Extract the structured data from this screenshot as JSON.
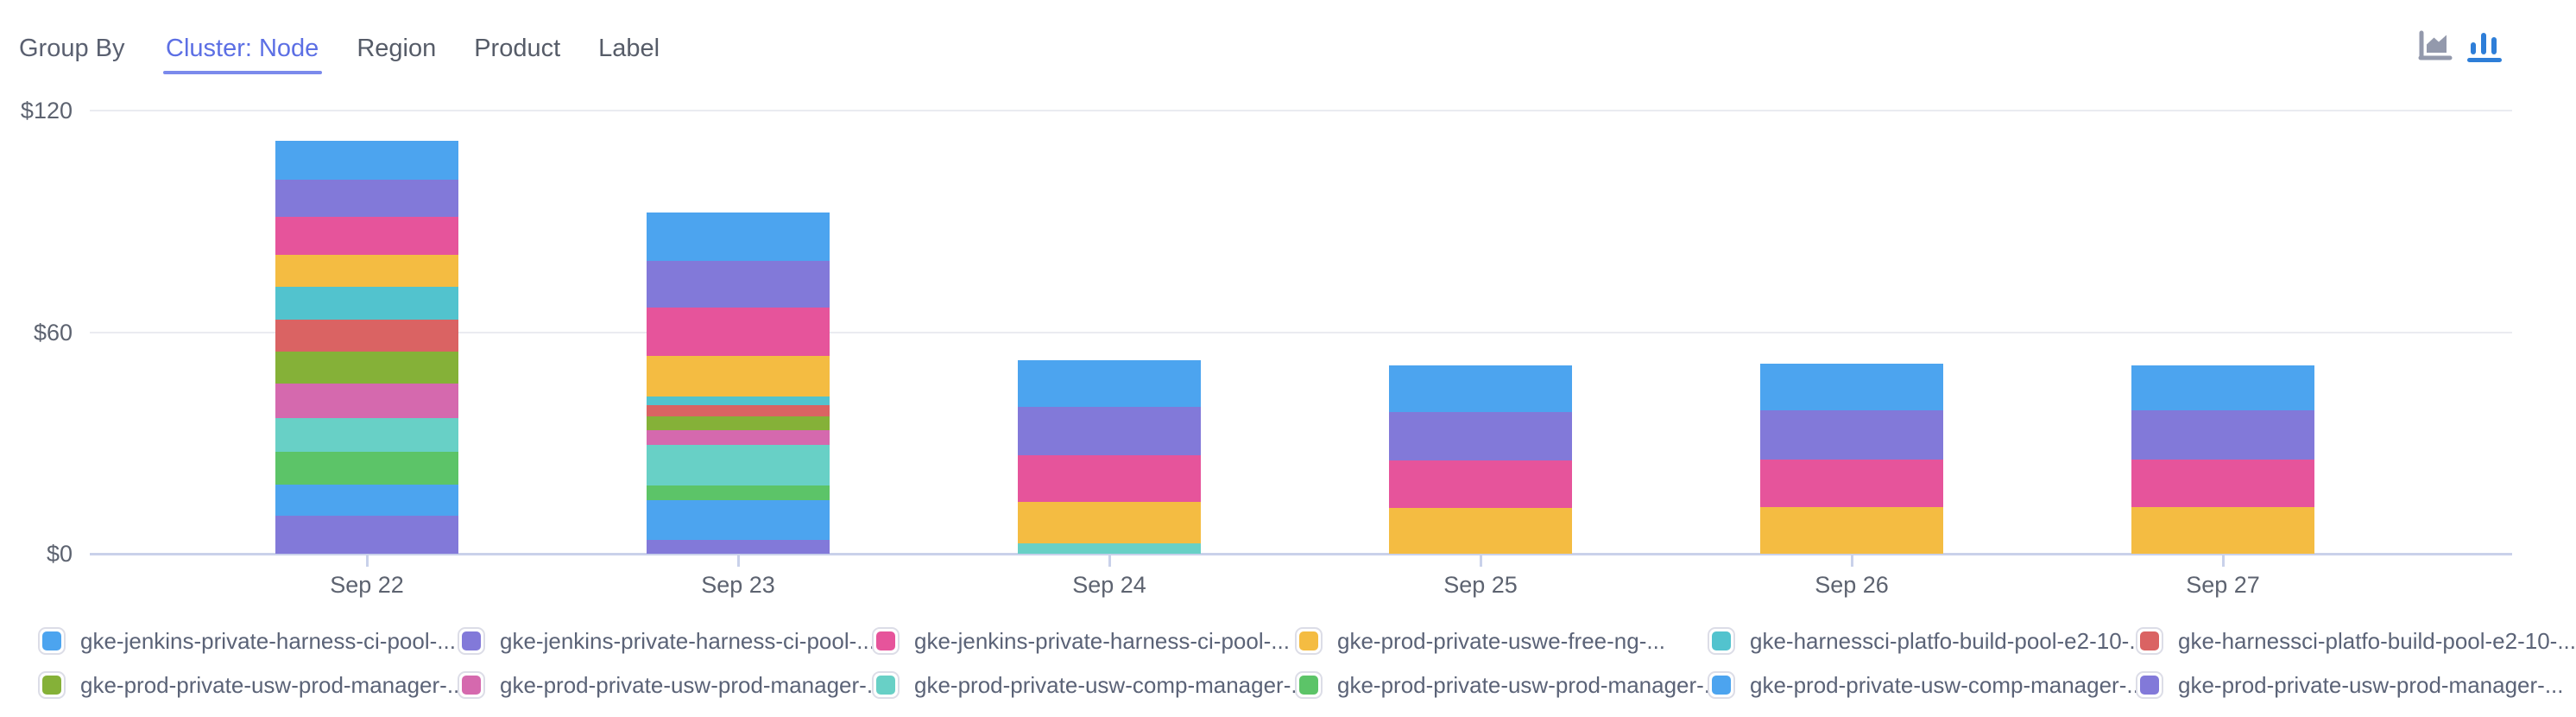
{
  "header": {
    "group_by_label": "Group By",
    "tabs": [
      {
        "label": "Cluster: Node",
        "active": true
      },
      {
        "label": "Region",
        "active": false
      },
      {
        "label": "Product",
        "active": false
      },
      {
        "label": "Label",
        "active": false
      }
    ],
    "chart_type_toggle": [
      {
        "name": "area-chart",
        "active": false
      },
      {
        "name": "bar-chart",
        "active": true
      }
    ]
  },
  "colors": {
    "active_tab": "#5c6fe4",
    "tab_underline": "#7b8aec",
    "inactive_tab_text": "#565c68",
    "icon_active": "#2e7ed8",
    "icon_inactive": "#9399ac",
    "gridline": "#eaebf1",
    "x_axis_line": "#c9d1ea",
    "axis_text": "#5d6370",
    "legend_text": "#5b6377",
    "legend_swatch_border": "#dcdde7"
  },
  "chart_data": {
    "type": "bar",
    "stacked": true,
    "stack_order": "first-series-on-top",
    "categories": [
      "Sep 22",
      "Sep 23",
      "Sep 24",
      "Sep 25",
      "Sep 26",
      "Sep 27"
    ],
    "series": [
      {
        "name": "gke-jenkins-private-harness-ci-pool-...",
        "color": "#4CA4EF",
        "values": [
          10.5,
          13.0,
          12.6,
          12.6,
          12.6,
          12.1
        ]
      },
      {
        "name": "gke-jenkins-private-harness-ci-pool-...",
        "color": "#8279D9",
        "values": [
          9.9,
          12.7,
          13.1,
          13.1,
          13.3,
          13.3
        ]
      },
      {
        "name": "gke-jenkins-private-harness-ci-pool-...",
        "color": "#E6549B",
        "values": [
          10.3,
          13.0,
          12.6,
          12.9,
          12.9,
          12.9
        ]
      },
      {
        "name": "gke-prod-private-uswe-free-ng-...",
        "color": "#F4BC42",
        "values": [
          8.7,
          11.1,
          11.4,
          12.4,
          12.6,
          12.6
        ]
      },
      {
        "name": "gke-harnessci-platfo-build-pool-e2-10-...",
        "color": "#52C3CE",
        "values": [
          8.9,
          2.3,
          0,
          0,
          0,
          0
        ]
      },
      {
        "name": "gke-harnessci-platfo-build-pool-e2-10-...",
        "color": "#DA6363",
        "values": [
          8.7,
          3.0,
          0,
          0,
          0,
          0
        ]
      },
      {
        "name": "gke-prod-private-usw-prod-manager-...",
        "color": "#85B138",
        "values": [
          8.6,
          3.7,
          0,
          0,
          0,
          0
        ]
      },
      {
        "name": "gke-prod-private-usw-prod-manager-...",
        "color": "#D569AE",
        "values": [
          9.3,
          4.0,
          0,
          0,
          0,
          0
        ]
      },
      {
        "name": "gke-prod-private-usw-comp-manager-...",
        "color": "#68D0C6",
        "values": [
          9.1,
          11.0,
          2.7,
          0,
          0,
          0
        ]
      },
      {
        "name": "gke-prod-private-usw-prod-manager-...",
        "color": "#5CC468",
        "values": [
          9.1,
          4.0,
          0,
          0,
          0,
          0
        ]
      },
      {
        "name": "gke-prod-private-usw-comp-manager-...",
        "color": "#4CA4EF",
        "values": [
          8.2,
          10.8,
          0,
          0,
          0,
          0
        ]
      },
      {
        "name": "gke-prod-private-usw-prod-manager-...",
        "color": "#8279D9",
        "values": [
          10.4,
          3.7,
          0,
          0,
          0,
          0
        ]
      }
    ],
    "category_totals": [
      111.7,
      92.3,
      52.4,
      51.0,
      51.4,
      50.9
    ],
    "y_ticks": [
      {
        "label": "$0",
        "value": 0
      },
      {
        "label": "$60",
        "value": 60
      },
      {
        "label": "$120",
        "value": 120
      }
    ],
    "ylim": [
      0,
      120
    ],
    "currency": "$",
    "grid": "horizontal",
    "legend_position": "bottom",
    "legend_rows": 2,
    "legend_columns": 6
  }
}
